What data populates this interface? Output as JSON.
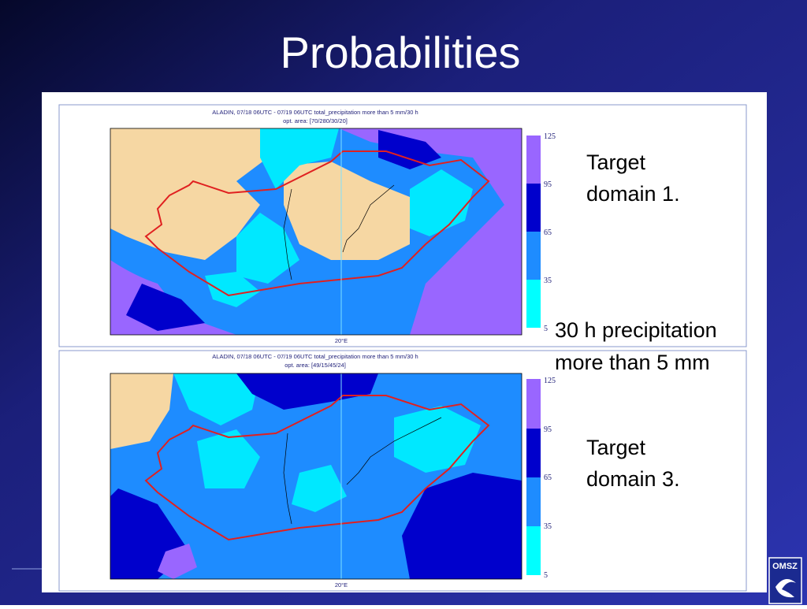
{
  "header": {
    "title": "Probabilities"
  },
  "maps": [
    {
      "title_line1": "ALADIN, 07/18 06UTC - 07/19 06UTC total_precipitation more than 5 mm/30 h",
      "title_line2": "opt. area: [70/280/30/20]",
      "colorbar_labels": [
        "125",
        "95",
        "65",
        "35",
        "5"
      ],
      "axis_label": "20°E"
    },
    {
      "title_line1": "ALADIN, 07/18 06UTC - 07/19 06UTC total_precipitation more than 5 mm/30 h",
      "title_line2": "opt. area: [49/15/45/24]",
      "colorbar_labels": [
        "125",
        "95",
        "65",
        "35",
        "5"
      ],
      "axis_label": "20°E"
    }
  ],
  "annotations": {
    "domain1": [
      "Target",
      "domain 1."
    ],
    "precip": [
      "30 h precipitation",
      "more than 5 mm"
    ],
    "domain3": [
      "Target",
      "domain 3."
    ]
  },
  "logo": "OMSZ"
}
